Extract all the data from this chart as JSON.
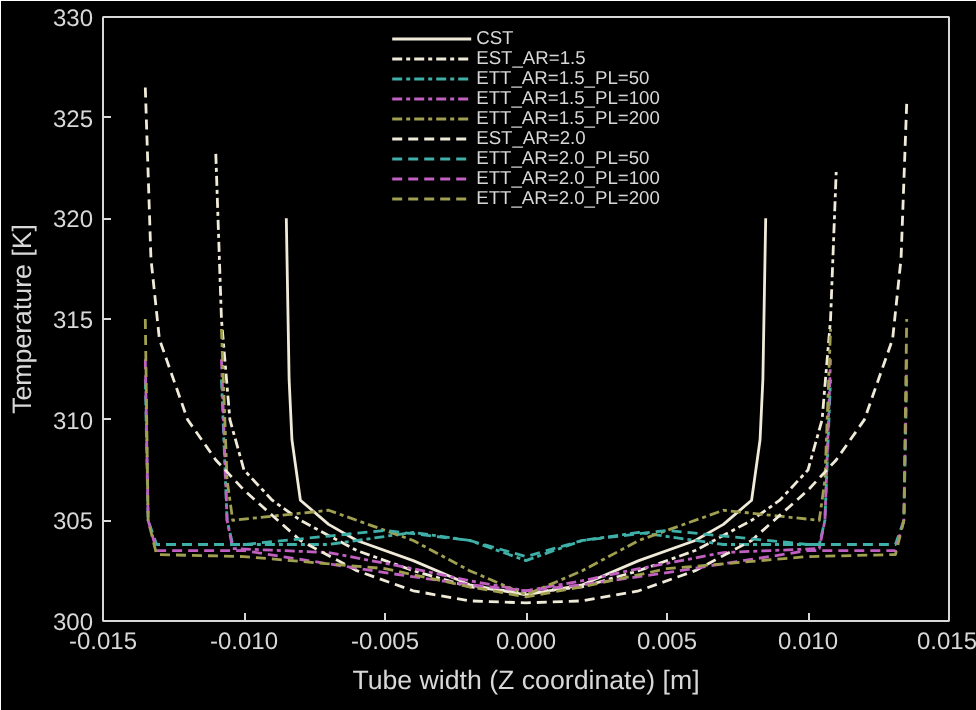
{
  "chart_data": {
    "type": "line",
    "xlabel": "Tube width (Z coordinate) [m]",
    "ylabel": "Temperature [K]",
    "xlim": [
      -0.015,
      0.015
    ],
    "xticks": [
      {
        "value": -0.015,
        "label": "-0.015"
      },
      {
        "value": -0.01,
        "label": "-0.010"
      },
      {
        "value": -0.005,
        "label": "-0.005"
      },
      {
        "value": 0,
        "label": "0.000"
      },
      {
        "value": 0.005,
        "label": "0.005"
      },
      {
        "value": 0.01,
        "label": "0.010"
      },
      {
        "value": 0.015,
        "label": "0.015"
      }
    ],
    "ylim": [
      300,
      330
    ],
    "yticks": [
      300,
      305,
      310,
      315,
      320,
      325,
      330
    ],
    "grid": false,
    "legend": "top",
    "marker": "none",
    "series": [
      {
        "name": "CST",
        "color": "#f0ead8",
        "line_style": "solid",
        "x": [
          -0.0085,
          -0.0084,
          -0.0083,
          -0.008,
          -0.007,
          -0.006,
          -0.004,
          -0.002,
          0,
          0.002,
          0.004,
          0.006,
          0.007,
          0.008,
          0.0083,
          0.0084,
          0.0085
        ],
        "values": [
          320,
          312,
          309,
          306,
          304.8,
          304,
          303,
          301.8,
          301.3,
          301.8,
          303,
          304,
          304.8,
          306,
          309,
          312,
          320
        ]
      },
      {
        "name": "EST_AR=1.5",
        "color": "#f0ead8",
        "line_style": "dashdot",
        "x": [
          -0.011,
          -0.0108,
          -0.0105,
          -0.01,
          -0.009,
          -0.008,
          -0.006,
          -0.004,
          -0.002,
          0,
          0.002,
          0.004,
          0.006,
          0.008,
          0.009,
          0.01,
          0.0105,
          0.0108,
          0.011
        ],
        "values": [
          323.2,
          315,
          310,
          307.5,
          306,
          305,
          303.5,
          302.5,
          301.7,
          301.4,
          301.7,
          302.5,
          303.5,
          305,
          306,
          307.5,
          310,
          315,
          322.3
        ]
      },
      {
        "name": "ETT_AR=1.5_PL=50",
        "color": "#3fb0a8",
        "line_style": "dashdot",
        "x": [
          -0.0108,
          -0.0106,
          -0.0104,
          -0.007,
          -0.004,
          -0.002,
          0,
          0.002,
          0.004,
          0.007,
          0.0104,
          0.0106,
          0.0108
        ],
        "values": [
          312,
          305,
          303.8,
          303.8,
          304.4,
          304,
          303,
          304,
          304.4,
          303.8,
          303.8,
          305,
          312
        ]
      },
      {
        "name": "ETT_AR=1.5_PL=100",
        "color": "#c060c0",
        "line_style": "dashdot",
        "x": [
          -0.0108,
          -0.0106,
          -0.0104,
          -0.007,
          -0.004,
          -0.002,
          0,
          0.002,
          0.004,
          0.007,
          0.0104,
          0.0106,
          0.0108
        ],
        "values": [
          313,
          305,
          303.6,
          303.4,
          302.6,
          302,
          301.5,
          302,
          302.6,
          303.4,
          303.6,
          305,
          313
        ]
      },
      {
        "name": "ETT_AR=1.5_PL=200",
        "color": "#a0a050",
        "line_style": "dashdot",
        "x": [
          -0.0108,
          -0.0106,
          -0.0104,
          -0.007,
          -0.004,
          -0.002,
          0,
          0.002,
          0.004,
          0.007,
          0.0104,
          0.0106,
          0.0108
        ],
        "values": [
          314.5,
          307,
          305,
          305.5,
          304,
          302.5,
          301.3,
          302.5,
          304,
          305.5,
          305,
          307,
          314.5
        ]
      },
      {
        "name": "EST_AR=2.0",
        "color": "#f0ead8",
        "line_style": "dashed",
        "x": [
          -0.0135,
          -0.0133,
          -0.013,
          -0.012,
          -0.011,
          -0.01,
          -0.008,
          -0.006,
          -0.004,
          -0.002,
          0,
          0.002,
          0.004,
          0.006,
          0.008,
          0.01,
          0.011,
          0.012,
          0.013,
          0.0133,
          0.0135
        ],
        "values": [
          326.5,
          318,
          314,
          310,
          308,
          306.5,
          304,
          302.5,
          301.5,
          301,
          300.9,
          301,
          301.5,
          302.5,
          304,
          306.5,
          308,
          310,
          314,
          318,
          325.7
        ]
      },
      {
        "name": "ETT_AR=2.0_PL=50",
        "color": "#3fb0a8",
        "line_style": "dashed",
        "x": [
          -0.0135,
          -0.0134,
          -0.0131,
          -0.01,
          -0.005,
          -0.002,
          0,
          0.002,
          0.005,
          0.01,
          0.0131,
          0.0134,
          0.0135
        ],
        "values": [
          312,
          305,
          303.8,
          303.8,
          304.5,
          304,
          303.2,
          304,
          304.5,
          303.8,
          303.8,
          305,
          312
        ]
      },
      {
        "name": "ETT_AR=2.0_PL=100",
        "color": "#c060c0",
        "line_style": "dashed",
        "x": [
          -0.0135,
          -0.0134,
          -0.0131,
          -0.01,
          -0.005,
          -0.002,
          0,
          0.002,
          0.005,
          0.01,
          0.0131,
          0.0134,
          0.0135
        ],
        "values": [
          313,
          305,
          303.5,
          303.5,
          302.4,
          301.8,
          301.5,
          301.8,
          302.4,
          303.5,
          303.5,
          305,
          313
        ]
      },
      {
        "name": "ETT_AR=2.0_PL=200",
        "color": "#a0a050",
        "line_style": "dashed",
        "x": [
          -0.0135,
          -0.0134,
          -0.0131,
          -0.01,
          -0.005,
          -0.002,
          0,
          0.002,
          0.005,
          0.01,
          0.0131,
          0.0134,
          0.0135
        ],
        "values": [
          315,
          305,
          303.3,
          303.2,
          302.6,
          301.7,
          301.2,
          301.7,
          302.6,
          303.2,
          303.3,
          305,
          315
        ]
      }
    ]
  }
}
